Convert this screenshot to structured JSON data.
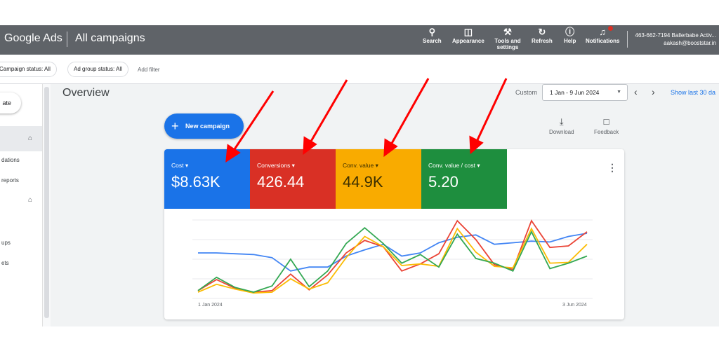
{
  "topbar": {
    "brand": "Google Ads",
    "page_title": "All campaigns",
    "tools": [
      {
        "label": "Search",
        "icon": "search-icon"
      },
      {
        "label": "Appearance",
        "icon": "appearance-icon"
      },
      {
        "label": "Tools and settings",
        "icon": "wrench-icon"
      },
      {
        "label": "Refresh",
        "icon": "refresh-icon"
      },
      {
        "label": "Help",
        "icon": "help-icon"
      },
      {
        "label": "Notifications",
        "icon": "bell-icon"
      }
    ],
    "account_line1": "463-662-7194 Ballerbabe Activ...",
    "account_line2": "aakash@booststar.in"
  },
  "filters": {
    "campaign_status": "Campaign status: All",
    "ad_group_status": "Ad group status: All",
    "add_filter": "Add filter"
  },
  "sidebar": {
    "create": "ate",
    "items": [
      "dations",
      "reports",
      "ups",
      "ets"
    ]
  },
  "main": {
    "overview_title": "Overview",
    "custom_label": "Custom",
    "date_range": "1 Jan - 9 Jun 2024",
    "show_last": "Show last 30 da",
    "new_campaign": "New campaign",
    "download": "Download",
    "feedback": "Feedback"
  },
  "metrics": [
    {
      "name": "Cost",
      "value": "$8.63K",
      "color": "#1a73e8"
    },
    {
      "name": "Conversions",
      "value": "426.44",
      "color": "#d93025"
    },
    {
      "name": "Conv. value",
      "value": "44.9K",
      "color": "#f9ab00"
    },
    {
      "name": "Conv. value / cost",
      "value": "5.20",
      "color": "#1e8e3e"
    }
  ],
  "chart_data": {
    "type": "line",
    "x_labels": [
      "1 Jan 2024",
      "3 Jun 2024"
    ],
    "ylim": [
      0,
      1
    ],
    "grid": true,
    "series": [
      {
        "name": "Cost",
        "color": "#4285f4",
        "values": [
          0.58,
          0.58,
          0.57,
          0.56,
          0.52,
          0.35,
          0.4,
          0.4,
          0.54,
          0.62,
          0.69,
          0.54,
          0.58,
          0.71,
          0.78,
          0.81,
          0.69,
          0.71,
          0.73,
          0.72,
          0.79,
          0.83
        ]
      },
      {
        "name": "Conversions",
        "color": "#ea4335",
        "values": [
          0.1,
          0.24,
          0.13,
          0.08,
          0.1,
          0.31,
          0.11,
          0.3,
          0.58,
          0.74,
          0.66,
          0.35,
          0.44,
          0.57,
          0.99,
          0.75,
          0.43,
          0.37,
          0.99,
          0.65,
          0.67,
          0.85
        ]
      },
      {
        "name": "Conv. value",
        "color": "#fbbc04",
        "values": [
          0.08,
          0.18,
          0.12,
          0.07,
          0.08,
          0.25,
          0.12,
          0.2,
          0.52,
          0.79,
          0.66,
          0.42,
          0.44,
          0.41,
          0.89,
          0.59,
          0.41,
          0.39,
          0.89,
          0.45,
          0.46,
          0.69
        ]
      },
      {
        "name": "Conv. value / cost",
        "color": "#34a853",
        "values": [
          0.1,
          0.27,
          0.14,
          0.08,
          0.16,
          0.5,
          0.15,
          0.35,
          0.7,
          0.9,
          0.7,
          0.45,
          0.56,
          0.4,
          0.82,
          0.51,
          0.45,
          0.35,
          0.85,
          0.38,
          0.45,
          0.54
        ]
      }
    ]
  }
}
